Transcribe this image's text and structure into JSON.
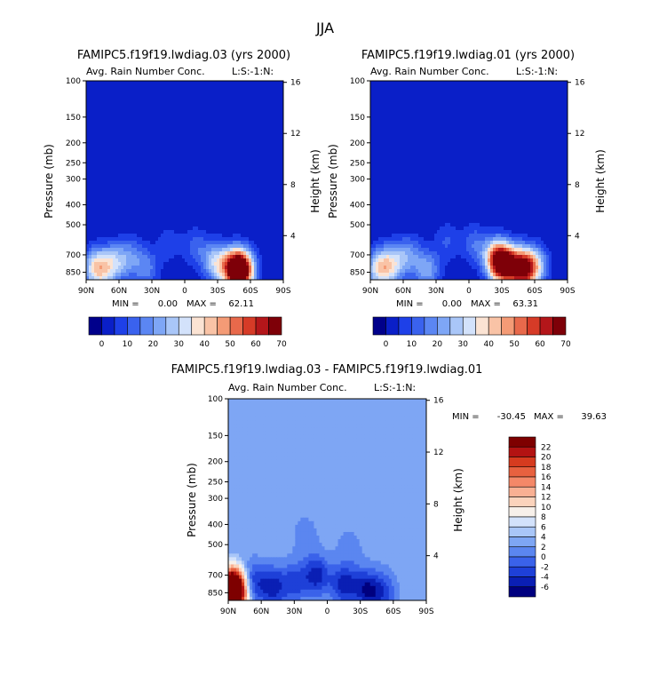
{
  "page_title": "JJA",
  "palette": {
    "sequential": [
      "#00008b",
      "#0a1fc8",
      "#1e40e8",
      "#3a62ee",
      "#5b86f3",
      "#7ea6f6",
      "#a9c6f8",
      "#d3e2fb",
      "#fbe3d3",
      "#f9c3a6",
      "#f49b76",
      "#e8694b",
      "#d63b27",
      "#b4161a",
      "#7e0008"
    ],
    "difference": [
      "#00007f",
      "#0a1fb4",
      "#1e40d8",
      "#3a62ea",
      "#5b86f0",
      "#7ea6f4",
      "#a9c6f8",
      "#d3e2fb",
      "#f7f0ea",
      "#fbd3bc",
      "#f9b093",
      "#f48868",
      "#e8613f",
      "#d63b1f",
      "#b31312",
      "#7e0000"
    ]
  },
  "chart_data": [
    {
      "id": "panel1",
      "type": "contour",
      "title": "FAMIPC5.f19f19.lwdiag.03 (yrs 2000)",
      "subtitle": "Avg. Rain Number Conc.",
      "subtitle_right": "L:S:-1:N:",
      "xlabel": "",
      "ylabel": "Pressure (mb)",
      "ylabel_right": "Height (km)",
      "x_ticks": [
        "90N",
        "60N",
        "30N",
        "0",
        "30S",
        "60S",
        "90S"
      ],
      "x_range": [
        90,
        -90
      ],
      "y_ticks": [
        100,
        150,
        200,
        250,
        300,
        400,
        500,
        700,
        850
      ],
      "y_ticks_labels": [
        "100",
        "150",
        "200",
        "250",
        "300",
        "400",
        "500",
        "700",
        "850"
      ],
      "y_range": [
        100,
        925
      ],
      "y_scale": "log",
      "height_ticks": [
        4,
        8,
        12,
        16
      ],
      "height_ticks_labels": [
        "4",
        "8",
        "12",
        "16"
      ],
      "min_label": "MIN =",
      "min_value": "0.00",
      "max_label": "MAX =",
      "max_value": "62.11",
      "colorbar_labels": [
        "0",
        "10",
        "20",
        "30",
        "40",
        "50",
        "60",
        "70"
      ],
      "colorbar_levels": [
        0,
        5,
        10,
        15,
        20,
        25,
        30,
        35,
        40,
        45,
        50,
        55,
        60,
        65,
        70
      ],
      "blobs": [
        {
          "lat": 82,
          "p": 820,
          "v": 30
        },
        {
          "lat": 72,
          "p": 800,
          "v": 22
        },
        {
          "lat": 60,
          "p": 760,
          "v": 18
        },
        {
          "lat": 48,
          "p": 700,
          "v": 12
        },
        {
          "lat": 35,
          "p": 820,
          "v": 16
        },
        {
          "lat": 15,
          "p": 620,
          "v": 8
        },
        {
          "lat": -10,
          "p": 640,
          "v": 12
        },
        {
          "lat": -28,
          "p": 760,
          "v": 28
        },
        {
          "lat": -45,
          "p": 820,
          "v": 48
        },
        {
          "lat": -52,
          "p": 830,
          "v": 62
        }
      ]
    },
    {
      "id": "panel2",
      "type": "contour",
      "title": "FAMIPC5.f19f19.lwdiag.01 (yrs 2000)",
      "subtitle": "Avg. Rain Number Conc.",
      "subtitle_right": "L:S:-1:N:",
      "xlabel": "",
      "ylabel": "Pressure (mb)",
      "ylabel_right": "Height (km)",
      "x_ticks": [
        "90N",
        "60N",
        "30N",
        "0",
        "30S",
        "60S",
        "90S"
      ],
      "x_range": [
        90,
        -90
      ],
      "y_ticks": [
        100,
        150,
        200,
        250,
        300,
        400,
        500,
        700,
        850
      ],
      "y_ticks_labels": [
        "100",
        "150",
        "200",
        "250",
        "300",
        "400",
        "500",
        "700",
        "850"
      ],
      "y_range": [
        100,
        925
      ],
      "y_scale": "log",
      "height_ticks": [
        4,
        8,
        12,
        16
      ],
      "height_ticks_labels": [
        "4",
        "8",
        "12",
        "16"
      ],
      "min_label": "MIN =",
      "min_value": "0.00",
      "max_label": "MAX =",
      "max_value": "63.31",
      "colorbar_labels": [
        "0",
        "10",
        "20",
        "30",
        "40",
        "50",
        "60",
        "70"
      ],
      "colorbar_levels": [
        0,
        5,
        10,
        15,
        20,
        25,
        30,
        35,
        40,
        45,
        50,
        55,
        60,
        65,
        70
      ],
      "blobs": [
        {
          "lat": 82,
          "p": 820,
          "v": 32
        },
        {
          "lat": 70,
          "p": 780,
          "v": 26
        },
        {
          "lat": 55,
          "p": 700,
          "v": 18
        },
        {
          "lat": 38,
          "p": 830,
          "v": 22
        },
        {
          "lat": 20,
          "p": 600,
          "v": 10
        },
        {
          "lat": -5,
          "p": 620,
          "v": 14
        },
        {
          "lat": -25,
          "p": 730,
          "v": 40
        },
        {
          "lat": -32,
          "p": 780,
          "v": 56
        },
        {
          "lat": -48,
          "p": 820,
          "v": 63
        },
        {
          "lat": -60,
          "p": 790,
          "v": 30
        }
      ]
    },
    {
      "id": "panel3",
      "type": "contour",
      "title": "FAMIPC5.f19f19.lwdiag.03 - FAMIPC5.f19f19.lwdiag.01",
      "subtitle": "Avg. Rain Number Conc.",
      "subtitle_right": "L:S:-1:N:",
      "xlabel": "",
      "ylabel": "Pressure (mb)",
      "ylabel_right": "Height (km)",
      "x_ticks": [
        "90N",
        "60N",
        "30N",
        "0",
        "30S",
        "60S",
        "90S"
      ],
      "x_range": [
        90,
        -90
      ],
      "y_ticks": [
        100,
        150,
        200,
        250,
        300,
        400,
        500,
        700,
        850
      ],
      "y_ticks_labels": [
        "100",
        "150",
        "200",
        "250",
        "300",
        "400",
        "500",
        "700",
        "850"
      ],
      "y_range": [
        100,
        925
      ],
      "y_scale": "log",
      "height_ticks": [
        4,
        8,
        12,
        16
      ],
      "height_ticks_labels": [
        "4",
        "8",
        "12",
        "16"
      ],
      "min_label": "MIN =",
      "min_value": "-30.45",
      "max_label": "MAX =",
      "max_value": "39.63",
      "colorbar_labels": [
        "22",
        "20",
        "18",
        "16",
        "14",
        "12",
        "10",
        "8",
        "6",
        "4",
        "2",
        "0",
        "-2",
        "-4",
        "-6"
      ],
      "colorbar_levels": [
        -8,
        -6,
        -4,
        -2,
        0,
        2,
        4,
        6,
        8,
        10,
        12,
        14,
        16,
        18,
        20,
        22,
        24
      ],
      "background_value": 1,
      "blobs": [
        {
          "lat": 85,
          "p": 820,
          "v": 39
        },
        {
          "lat": 70,
          "p": 760,
          "v": -8
        },
        {
          "lat": 50,
          "p": 800,
          "v": -8
        },
        {
          "lat": 30,
          "p": 760,
          "v": -6
        },
        {
          "lat": 10,
          "p": 700,
          "v": -8
        },
        {
          "lat": -15,
          "p": 780,
          "v": -8
        },
        {
          "lat": -35,
          "p": 820,
          "v": -8
        },
        {
          "lat": -50,
          "p": 850,
          "v": -6
        },
        {
          "lat": 20,
          "p": 450,
          "v": -2
        },
        {
          "lat": -20,
          "p": 520,
          "v": -2
        }
      ]
    }
  ]
}
